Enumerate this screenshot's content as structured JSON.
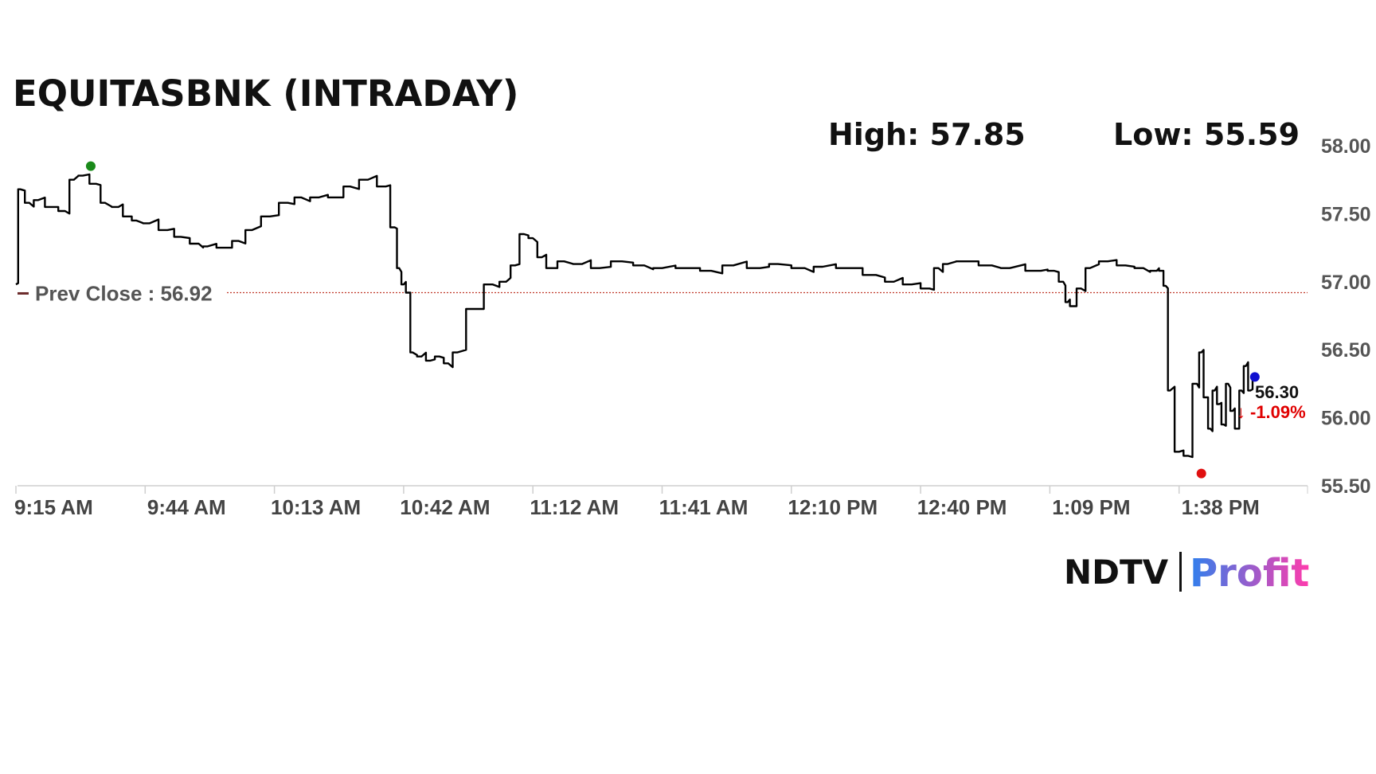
{
  "header": {
    "title": "EQUITASBNK (INTRADAY)",
    "high_label": "High: 57.85",
    "low_label": "Low: 55.59"
  },
  "prev_close_label": "Prev Close : 56.92",
  "last": {
    "price_label": "56.30",
    "change_label": "-1.09%",
    "arrow": "↓"
  },
  "logo": {
    "part1": "NDTV",
    "part2": "Profit"
  },
  "colors": {
    "line": "#000000",
    "prev_close": "#c0392b",
    "high_marker": "#1a8a1a",
    "low_marker": "#e01010",
    "last_marker": "#1010d0",
    "change": "#e00000",
    "logo_gradient_start": "#2f80ed",
    "logo_gradient_end": "#ff3cac"
  },
  "chart_data": {
    "type": "line",
    "title": "EQUITASBNK (INTRADAY)",
    "xlabel": "",
    "ylabel": "",
    "ylim": [
      55.5,
      58.0
    ],
    "xlim_minutes_label": [
      "9:15 AM",
      "1:53 PM"
    ],
    "prev_close": 56.92,
    "high": 57.85,
    "low": 55.59,
    "last": 56.3,
    "change_pct": -1.09,
    "y_ticks": [
      "58.00",
      "57.50",
      "57.00",
      "56.50",
      "56.00",
      "55.50"
    ],
    "y_tick_values": [
      58.0,
      57.5,
      57.0,
      56.5,
      56.0,
      55.5
    ],
    "x_ticks": [
      "9:15 AM",
      "9:44 AM",
      "10:13 AM",
      "10:42 AM",
      "11:12 AM",
      "11:41 AM",
      "12:10 PM",
      "12:40 PM",
      "1:09 PM",
      "1:38 PM"
    ],
    "grid": false,
    "series": [
      {
        "x": [
          "9:15",
          "9:16",
          "9:18",
          "9:20",
          "9:23",
          "9:26",
          "9:28",
          "9:30",
          "9:33",
          "9:35",
          "9:38",
          "9:40",
          "9:42",
          "9:45",
          "9:49",
          "9:52",
          "9:56",
          "9:58",
          "10:02",
          "10:05",
          "10:08",
          "10:12",
          "10:16",
          "10:19",
          "10:23",
          "10:27",
          "10:30",
          "10:34",
          "10:38",
          "10:40",
          "10:41",
          "10:42",
          "10:43",
          "10:44",
          "10:46",
          "10:48",
          "10:50",
          "10:52",
          "10:54",
          "10:58",
          "11:02",
          "11:05",
          "11:07",
          "11:09",
          "11:11",
          "11:13",
          "11:15",
          "11:18",
          "11:22",
          "11:26",
          "11:31",
          "11:36",
          "11:40",
          "11:46",
          "11:51",
          "11:56",
          "12:02",
          "12:06",
          "12:12",
          "12:16",
          "12:22",
          "12:28",
          "12:32",
          "12:36",
          "12:40",
          "12:42",
          "12:44",
          "12:48",
          "12:54",
          "12:58",
          "13:05",
          "13:08",
          "13:10",
          "13:11",
          "13:12",
          "13:14",
          "13:16",
          "13:20",
          "13:24",
          "13:28",
          "13:31",
          "13:32",
          "13:33",
          "13:34",
          "13:36",
          "13:38",
          "13:40",
          "13:41",
          "13:42",
          "13:43",
          "13:44",
          "13:45",
          "13:46",
          "13:47",
          "13:48",
          "13:49",
          "13:50",
          "13:51",
          "13:52",
          "13:53"
        ],
        "y": [
          56.98,
          57.68,
          57.58,
          57.6,
          57.55,
          57.52,
          57.75,
          57.78,
          57.72,
          57.58,
          57.55,
          57.48,
          57.45,
          57.43,
          57.38,
          57.33,
          57.28,
          57.26,
          57.25,
          57.3,
          57.38,
          57.48,
          57.58,
          57.62,
          57.62,
          57.62,
          57.7,
          57.75,
          57.7,
          57.4,
          57.1,
          56.98,
          56.92,
          56.48,
          56.45,
          56.42,
          56.45,
          56.4,
          56.48,
          56.8,
          56.98,
          57.0,
          57.12,
          57.35,
          57.32,
          57.18,
          57.1,
          57.15,
          57.13,
          57.1,
          57.15,
          57.12,
          57.1,
          57.1,
          57.08,
          57.12,
          57.1,
          57.13,
          57.1,
          57.11,
          57.1,
          57.05,
          57.0,
          56.98,
          56.95,
          57.1,
          57.13,
          57.15,
          57.12,
          57.1,
          57.08,
          57.08,
          57.0,
          56.85,
          56.82,
          56.95,
          57.1,
          57.15,
          57.12,
          57.1,
          57.08,
          57.08,
          56.97,
          56.2,
          55.75,
          55.72,
          56.25,
          56.48,
          56.15,
          55.92,
          56.2,
          56.1,
          55.95,
          56.25,
          56.05,
          55.92,
          56.2,
          56.38,
          56.2,
          56.3
        ]
      }
    ]
  }
}
